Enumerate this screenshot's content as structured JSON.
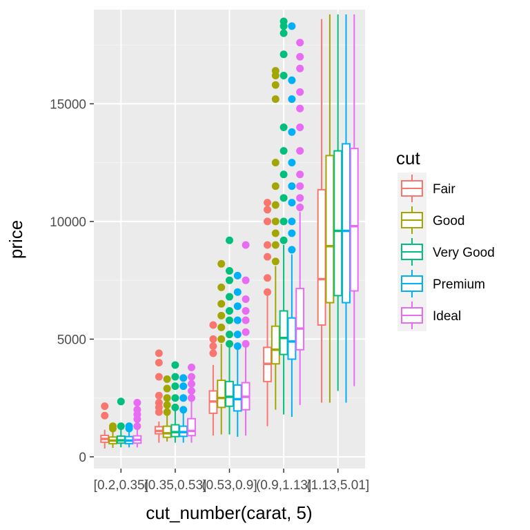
{
  "chart_data": {
    "type": "boxplot",
    "xlabel": "cut_number(carat, 5)",
    "ylabel": "price",
    "ylim": [
      -500,
      19000
    ],
    "yticks": [
      0,
      5000,
      10000,
      15000
    ],
    "grid": true,
    "legend_position": "right",
    "legend_title": "cut",
    "categories": [
      "[0.2,0.35]",
      "(0.35,0.53]",
      "(0.53,0.9]",
      "(0.9,1.13]",
      "(1.13,5.01]"
    ],
    "series": [
      {
        "name": "Fair",
        "color": "#F8766D",
        "boxes": [
          {
            "lower": 350,
            "q1": 620,
            "median": 760,
            "q3": 910,
            "upper": 1150,
            "outliers": [
              1750,
              2150
            ]
          },
          {
            "lower": 600,
            "q1": 980,
            "median": 1100,
            "q3": 1280,
            "upper": 1500,
            "outliers": [
              1900,
              2100,
              2300,
              2600,
              3400,
              4000,
              4400
            ]
          },
          {
            "lower": 900,
            "q1": 1850,
            "median": 2350,
            "q3": 2800,
            "upper": 3900,
            "outliers": [
              4400,
              4700,
              5000,
              5600
            ]
          },
          {
            "lower": 1300,
            "q1": 3200,
            "median": 3950,
            "q3": 4650,
            "upper": 6900,
            "outliers": [
              7000,
              7600,
              8500,
              9000,
              10000,
              10500,
              10800
            ]
          },
          {
            "lower": 2300,
            "q1": 5600,
            "median": 7550,
            "q3": 11350,
            "upper": 18600,
            "outliers": []
          }
        ]
      },
      {
        "name": "Good",
        "color": "#A3A500",
        "boxes": [
          {
            "lower": 380,
            "q1": 560,
            "median": 690,
            "q3": 840,
            "upper": 1150,
            "outliers": [
              1200,
              1300
            ]
          },
          {
            "lower": 650,
            "q1": 830,
            "median": 1000,
            "q3": 1300,
            "upper": 1750,
            "outliers": [
              1900,
              2200,
              2500,
              2900,
              3300
            ]
          },
          {
            "lower": 950,
            "q1": 2100,
            "median": 2500,
            "q3": 3250,
            "upper": 4800,
            "outliers": [
              5000,
              5500,
              6000,
              6500,
              7200,
              8200
            ]
          },
          {
            "lower": 2000,
            "q1": 3950,
            "median": 4550,
            "q3": 5550,
            "upper": 8100,
            "outliers": [
              8300,
              9000,
              9500,
              10000,
              10700,
              11500,
              12500,
              15200,
              15800,
              16200,
              16400
            ]
          },
          {
            "lower": 2300,
            "q1": 6550,
            "median": 8950,
            "q3": 12800,
            "upper": 18800,
            "outliers": []
          }
        ]
      },
      {
        "name": "Very Good",
        "color": "#00BF7D",
        "boxes": [
          {
            "lower": 400,
            "q1": 580,
            "median": 700,
            "q3": 880,
            "upper": 1250,
            "outliers": [
              1300,
              2350
            ]
          },
          {
            "lower": 600,
            "q1": 860,
            "median": 1050,
            "q3": 1360,
            "upper": 2000,
            "outliers": [
              2100,
              2500,
              3000,
              3400,
              3900
            ]
          },
          {
            "lower": 950,
            "q1": 2150,
            "median": 2550,
            "q3": 3200,
            "upper": 4700,
            "outliers": [
              4800,
              5200,
              5800,
              6200,
              6800,
              7500,
              7900,
              9200
            ]
          },
          {
            "lower": 1800,
            "q1": 4350,
            "median": 5050,
            "q3": 6200,
            "upper": 9000,
            "outliers": [
              9200,
              10000,
              11000,
              12000,
              13000,
              14000,
              16200,
              17100,
              18000,
              18300,
              18500
            ]
          },
          {
            "lower": 2800,
            "q1": 6850,
            "median": 9600,
            "q3": 13000,
            "upper": 18800,
            "outliers": []
          }
        ]
      },
      {
        "name": "Premium",
        "color": "#00B0F6",
        "boxes": [
          {
            "lower": 400,
            "q1": 560,
            "median": 690,
            "q3": 860,
            "upper": 1150,
            "outliers": [
              1200,
              1300
            ]
          },
          {
            "lower": 600,
            "q1": 870,
            "median": 1050,
            "q3": 1300,
            "upper": 1850,
            "outliers": [
              2000,
              2500,
              3000,
              3350
            ]
          },
          {
            "lower": 850,
            "q1": 1950,
            "median": 2450,
            "q3": 3050,
            "upper": 4600,
            "outliers": [
              4700,
              5200,
              5800,
              6400,
              7000,
              7700
            ]
          },
          {
            "lower": 1700,
            "q1": 4150,
            "median": 4900,
            "q3": 5900,
            "upper": 8600,
            "outliers": [
              8800,
              9500,
              10000,
              10800,
              11500,
              12500,
              13800,
              15200,
              16000,
              18300
            ]
          },
          {
            "lower": 2300,
            "q1": 6550,
            "median": 9600,
            "q3": 13300,
            "upper": 18800,
            "outliers": []
          }
        ]
      },
      {
        "name": "Ideal",
        "color": "#E76BF3",
        "boxes": [
          {
            "lower": 400,
            "q1": 580,
            "median": 720,
            "q3": 890,
            "upper": 1250,
            "outliers": [
              1300,
              1600,
              1800,
              2000,
              2300
            ]
          },
          {
            "lower": 600,
            "q1": 900,
            "median": 1100,
            "q3": 1620,
            "upper": 2400,
            "outliers": [
              2500,
              2800,
              3100,
              3400,
              3800
            ]
          },
          {
            "lower": 900,
            "q1": 2000,
            "median": 2550,
            "q3": 3150,
            "upper": 4700,
            "outliers": [
              4800,
              5300,
              5800,
              6200,
              6700,
              7500,
              9000
            ]
          },
          {
            "lower": 2200,
            "q1": 4550,
            "median": 5450,
            "q3": 7150,
            "upper": 10400,
            "outliers": [
              10600,
              11000,
              11500,
              12000,
              13000,
              14000,
              14800,
              15500,
              16500,
              17000,
              17600
            ]
          },
          {
            "lower": 3000,
            "q1": 7050,
            "median": 9800,
            "q3": 13100,
            "upper": 18800,
            "outliers": []
          }
        ]
      }
    ]
  }
}
